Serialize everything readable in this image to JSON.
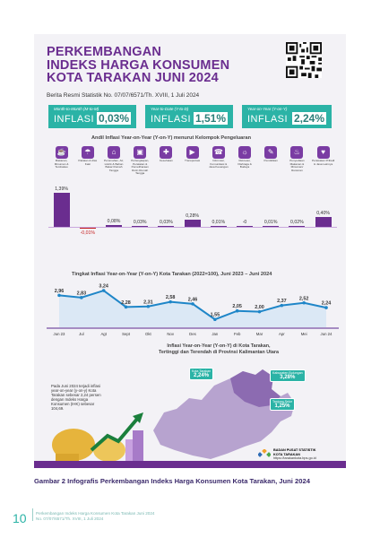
{
  "infographic": {
    "title_lines": [
      "PERKEMBANGAN",
      "INDEKS HARGA KONSUMEN",
      "KOTA TARAKAN JUNI 2024"
    ],
    "subtitle": "Berita Resmi Statistik No. 07/07/6571/Th. XVIII, 1 Juli 2024",
    "kpis": [
      {
        "label": "Month-to-Month (M-to-M)",
        "prefix": "INFLASI",
        "value": "0,03%"
      },
      {
        "label": "Year-to-Date (Y-to-D)",
        "prefix": "INFLASI",
        "value": "1,51%"
      },
      {
        "label": "Year-on-Year (Y-on-Y)",
        "prefix": "INFLASI",
        "value": "2,24%"
      }
    ],
    "groups_title": "Andil Inflasi Year-on-Year (Y-on-Y) menurut Kelompok Pengeluaran",
    "groups": [
      {
        "label": "Makanan, Minuman & Tembakau",
        "icon": "food-icon",
        "andil": "1,39%",
        "value": 1.39
      },
      {
        "label": "Pakaian & Alas Kaki",
        "icon": "clothing-icon",
        "andil": "-0,01%",
        "value": -0.01
      },
      {
        "label": "Perumahan, Air, Listrik & Bahan Bakar Rumah Tangga",
        "icon": "house-icon",
        "andil": "0,08%",
        "value": 0.08
      },
      {
        "label": "Perlengkapan, Peralatan & Pemeliharaan Rutin Rumah Tangga",
        "icon": "furniture-icon",
        "andil": "0,03%",
        "value": 0.03
      },
      {
        "label": "Kesehatan",
        "icon": "health-icon",
        "andil": "0,03%",
        "value": 0.03
      },
      {
        "label": "Transportasi",
        "icon": "transport-icon",
        "andil": "0,28%",
        "value": 0.28
      },
      {
        "label": "Informasi, Komunikasi & Jasa Keuangan",
        "icon": "phone-icon",
        "andil": "0,01%",
        "value": 0.01
      },
      {
        "label": "Rekreasi, Olahraga & Budaya",
        "icon": "recreation-icon",
        "andil": "-0",
        "value": 0
      },
      {
        "label": "Pendidikan",
        "icon": "education-icon",
        "andil": "0,01%",
        "value": 0.01
      },
      {
        "label": "Penyediaan Makanan & Minuman/ Restoran",
        "icon": "restaurant-icon",
        "andil": "0,02%",
        "value": 0.02
      },
      {
        "label": "Perawatan Pribadi & Jasa Lainnya",
        "icon": "personal-care-icon",
        "andil": "0,40%",
        "value": 0.4
      }
    ],
    "line_title": "Tingkat Inflasi Year-on-Year (Y-on-Y) Kota Tarakan (2022=100), Juni 2023 – Juni 2024",
    "map_title_lines": [
      "Inflasi Year-on-Year (Y-on-Y) di Kota Tarakan,",
      "Tertinggi dan Terendah di Provinsi Kalimantan Utara"
    ],
    "note": "Pada Juni 2024 terjadi inflasi year-on-year (y-on-y) Kota Tarakan sebesar 2,24 persen dengan Indeks Harga Konsumen (IHK) sebesar 104,69.",
    "cities": [
      {
        "name": "Kota Tarakan",
        "value": "2,24%"
      },
      {
        "name": "Kabupaten Bulungan",
        "value": "3,28%"
      },
      {
        "name": "Tanjung Selor",
        "value": "1,25%"
      }
    ],
    "bps_name_lines": [
      "BADAN PUSAT STATISTIK",
      "KOTA TARAKAN"
    ],
    "bps_url": "https://tarakankota.bps.go.id",
    "colors": {
      "purple": "#6a2d8f",
      "teal": "#2bb3a6",
      "line_blue": "#1f86c8",
      "negative": "#c41b1b"
    }
  },
  "chart_data": [
    {
      "type": "bar",
      "title": "Andil Inflasi Year-on-Year (Y-on-Y) menurut Kelompok Pengeluaran",
      "categories": [
        "Makanan, Minuman & Tembakau",
        "Pakaian & Alas Kaki",
        "Perumahan, Air, Listrik & Bahan Bakar Rumah Tangga",
        "Perlengkapan, Peralatan & Pemeliharaan Rutin Rumah Tangga",
        "Kesehatan",
        "Transportasi",
        "Informasi, Komunikasi & Jasa Keuangan",
        "Rekreasi, Olahraga & Budaya",
        "Pendidikan",
        "Penyediaan Makanan & Minuman/ Restoran",
        "Perawatan Pribadi & Jasa Lainnya"
      ],
      "values": [
        1.39,
        -0.01,
        0.08,
        0.03,
        0.03,
        0.28,
        0.01,
        0,
        0.01,
        0.02,
        0.4
      ],
      "labels": [
        "1,39%",
        "-0,01%",
        "0,08%",
        "0,03%",
        "0,03%",
        "0,28%",
        "0,01%",
        "-0",
        "0,01%",
        "0,02%",
        "0,40%"
      ]
    },
    {
      "type": "line",
      "title": "Tingkat Inflasi Year-on-Year (Y-on-Y) Kota Tarakan (2022=100), Juni 2023 – Juni 2024",
      "x": [
        "Jun 23",
        "Jul",
        "Agt",
        "Sept",
        "Okt",
        "Nov",
        "Des",
        "Jan 24",
        "Feb",
        "Mar",
        "Apr",
        "Mei",
        "Jun 24"
      ],
      "tick_labels": [
        "Jun 23",
        "Jul",
        "Agt",
        "Sept",
        "Okt",
        "Nov",
        "Des",
        "Jan",
        "Feb",
        "Mar",
        "Apr",
        "Mei",
        "Jun 24"
      ],
      "values": [
        2.96,
        2.83,
        3.24,
        2.28,
        2.31,
        2.58,
        2.46,
        1.55,
        2.05,
        2.0,
        2.37,
        2.52,
        2.24
      ],
      "labels": [
        "2,96",
        "2,83",
        "3,24",
        "2,28",
        "2,31",
        "2,58",
        "2,46",
        "1,55",
        "2,05",
        "2,00",
        "2,37",
        "2,52",
        "2,24"
      ],
      "ylim": [
        1.3,
        3.4
      ]
    }
  ],
  "caption": "Gambar 2   Infografis Perkembangan Indeks Harga Konsumen Kota Tarakan, Juni 2024",
  "page_number": "10",
  "footer_lines": [
    "Perkembangan Indeks Harga Konsumen Kota Tarakan Juni 2024",
    "No. 07/07/6571/Th. XVIII, 1 Juli 2024"
  ]
}
